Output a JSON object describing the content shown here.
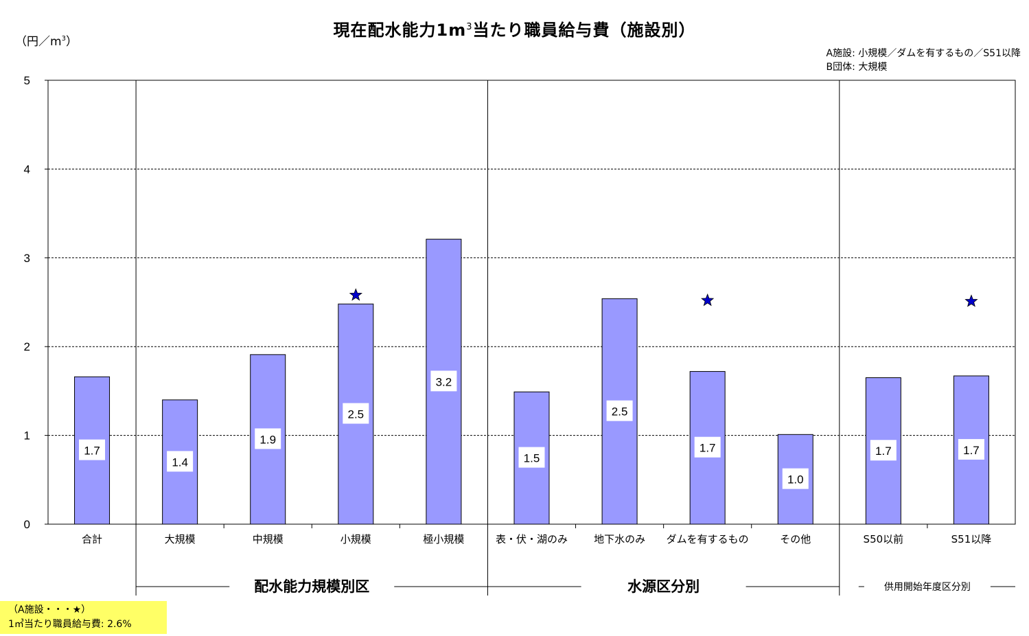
{
  "title_main": "現在配水能力1m",
  "title_sup": "3",
  "title_rest": "当たり職員給与費（施設別）",
  "unit_open": "（円／m",
  "unit_sup": "3",
  "unit_close": "）",
  "legend_note": {
    "line1": "A施設: 小規模／ダムを有するもの／S51以降",
    "line2": "B団体: 大規模"
  },
  "note_box": {
    "line1": "（A施設・・・★）",
    "line2": "1㎥当たり職員給与費: 2.6%"
  },
  "colors": {
    "bar_fill": "#9999ff",
    "bar_stroke": "#000000",
    "star": "#0000cc"
  },
  "chart_data": {
    "type": "bar",
    "ylim": [
      0,
      5
    ],
    "yticks": [
      "0",
      "1",
      "2",
      "3",
      "4",
      "5"
    ],
    "grid": "dashed horizontal",
    "categories": [
      "合計",
      "大規模",
      "中規模",
      "小規模",
      "極小規模",
      "表・伏・湖のみ",
      "地下水のみ",
      "ダムを有するもの",
      "その他",
      "S50以前",
      "S51以降"
    ],
    "values": [
      1.66,
      1.4,
      1.91,
      2.48,
      3.21,
      1.49,
      2.54,
      1.72,
      1.01,
      1.65,
      1.67
    ],
    "value_labels": [
      "1.7",
      "1.4",
      "1.9",
      "2.5",
      "3.2",
      "1.5",
      "2.5",
      "1.7",
      "1.0",
      "1.7",
      "1.7"
    ],
    "star_markers": [
      {
        "category": "小規模",
        "y": 2.58
      },
      {
        "category": "ダムを有するもの",
        "y": 2.52
      },
      {
        "category": "S51以降",
        "y": 2.51
      }
    ],
    "groups": [
      {
        "label": "配水能力規模別区",
        "from": 1,
        "to": 4,
        "style": "big"
      },
      {
        "label": "水源区分別",
        "from": 5,
        "to": 8,
        "style": "big"
      },
      {
        "label": "供用開始年度区分別",
        "from": 9,
        "to": 10,
        "style": "small"
      }
    ]
  }
}
